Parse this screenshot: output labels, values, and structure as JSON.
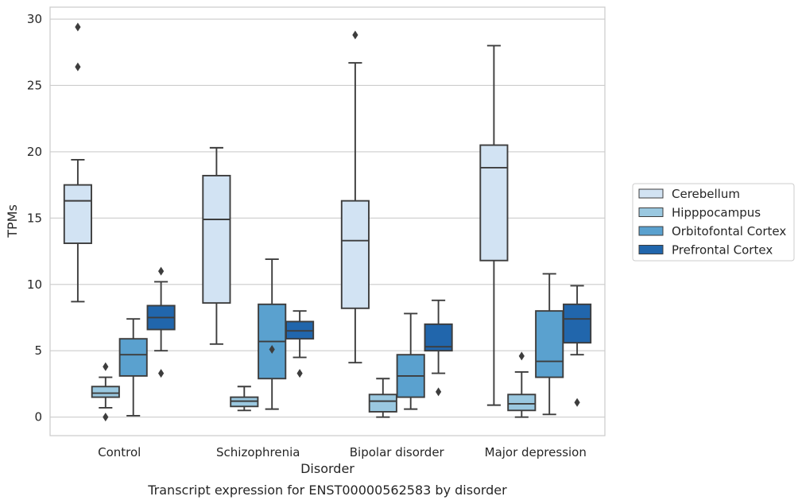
{
  "chart_data": {
    "type": "box",
    "caption": "Transcript expression for ENST00000562583 by disorder",
    "xlabel": "Disorder",
    "ylabel": "TPMs",
    "ylim": [
      -1.4,
      30.9
    ],
    "yticks": [
      0,
      5,
      10,
      15,
      20,
      25,
      30
    ],
    "grid": true,
    "legend_position": "right",
    "categories": [
      "Control",
      "Schizophrenia",
      "Bipolar disorder",
      "Major depression"
    ],
    "series": [
      {
        "name": "Cerebellum",
        "color": "#d2e3f3",
        "boxes": [
          {
            "whisker_low": 8.7,
            "q1": 13.1,
            "median": 16.3,
            "q3": 17.5,
            "whisker_high": 19.4,
            "outliers": [
              26.4,
              29.4
            ]
          },
          {
            "whisker_low": 5.5,
            "q1": 8.6,
            "median": 14.9,
            "q3": 18.2,
            "whisker_high": 20.3,
            "outliers": []
          },
          {
            "whisker_low": 4.1,
            "q1": 8.2,
            "median": 13.3,
            "q3": 16.3,
            "whisker_high": 26.7,
            "outliers": [
              28.8
            ]
          },
          {
            "whisker_low": 0.9,
            "q1": 11.8,
            "median": 18.8,
            "q3": 20.5,
            "whisker_high": 28.0,
            "outliers": []
          }
        ]
      },
      {
        "name": "Hipppocampus",
        "color": "#9ac8e0",
        "boxes": [
          {
            "whisker_low": 0.7,
            "q1": 1.5,
            "median": 1.8,
            "q3": 2.3,
            "whisker_high": 3.0,
            "outliers": [
              3.8,
              0.0
            ]
          },
          {
            "whisker_low": 0.5,
            "q1": 0.8,
            "median": 1.2,
            "q3": 1.5,
            "whisker_high": 2.3,
            "outliers": []
          },
          {
            "whisker_low": 0.0,
            "q1": 0.4,
            "median": 1.2,
            "q3": 1.7,
            "whisker_high": 2.9,
            "outliers": []
          },
          {
            "whisker_low": 0.0,
            "q1": 0.5,
            "median": 1.0,
            "q3": 1.7,
            "whisker_high": 3.4,
            "outliers": [
              4.6
            ]
          }
        ]
      },
      {
        "name": "Orbitofontal Cortex",
        "color": "#5aa1cf",
        "boxes": [
          {
            "whisker_low": 0.1,
            "q1": 3.1,
            "median": 4.7,
            "q3": 5.9,
            "whisker_high": 7.4,
            "outliers": []
          },
          {
            "whisker_low": 0.6,
            "q1": 2.9,
            "median": 5.7,
            "q3": 8.5,
            "whisker_high": 11.9,
            "outliers": [
              5.1
            ]
          },
          {
            "whisker_low": 0.6,
            "q1": 1.5,
            "median": 3.1,
            "q3": 4.7,
            "whisker_high": 7.8,
            "outliers": []
          },
          {
            "whisker_low": 0.2,
            "q1": 3.0,
            "median": 4.2,
            "q3": 8.0,
            "whisker_high": 10.8,
            "outliers": []
          }
        ]
      },
      {
        "name": "Prefrontal Cortex",
        "color": "#2166ac",
        "boxes": [
          {
            "whisker_low": 5.0,
            "q1": 6.6,
            "median": 7.5,
            "q3": 8.4,
            "whisker_high": 10.2,
            "outliers": [
              11.0,
              3.3
            ]
          },
          {
            "whisker_low": 4.5,
            "q1": 5.9,
            "median": 6.5,
            "q3": 7.2,
            "whisker_high": 8.0,
            "outliers": [
              3.3
            ]
          },
          {
            "whisker_low": 3.3,
            "q1": 5.0,
            "median": 5.3,
            "q3": 7.0,
            "whisker_high": 8.8,
            "outliers": [
              1.9
            ]
          },
          {
            "whisker_low": 4.7,
            "q1": 5.6,
            "median": 7.4,
            "q3": 8.5,
            "whisker_high": 9.9,
            "outliers": [
              1.1
            ]
          }
        ]
      }
    ]
  }
}
